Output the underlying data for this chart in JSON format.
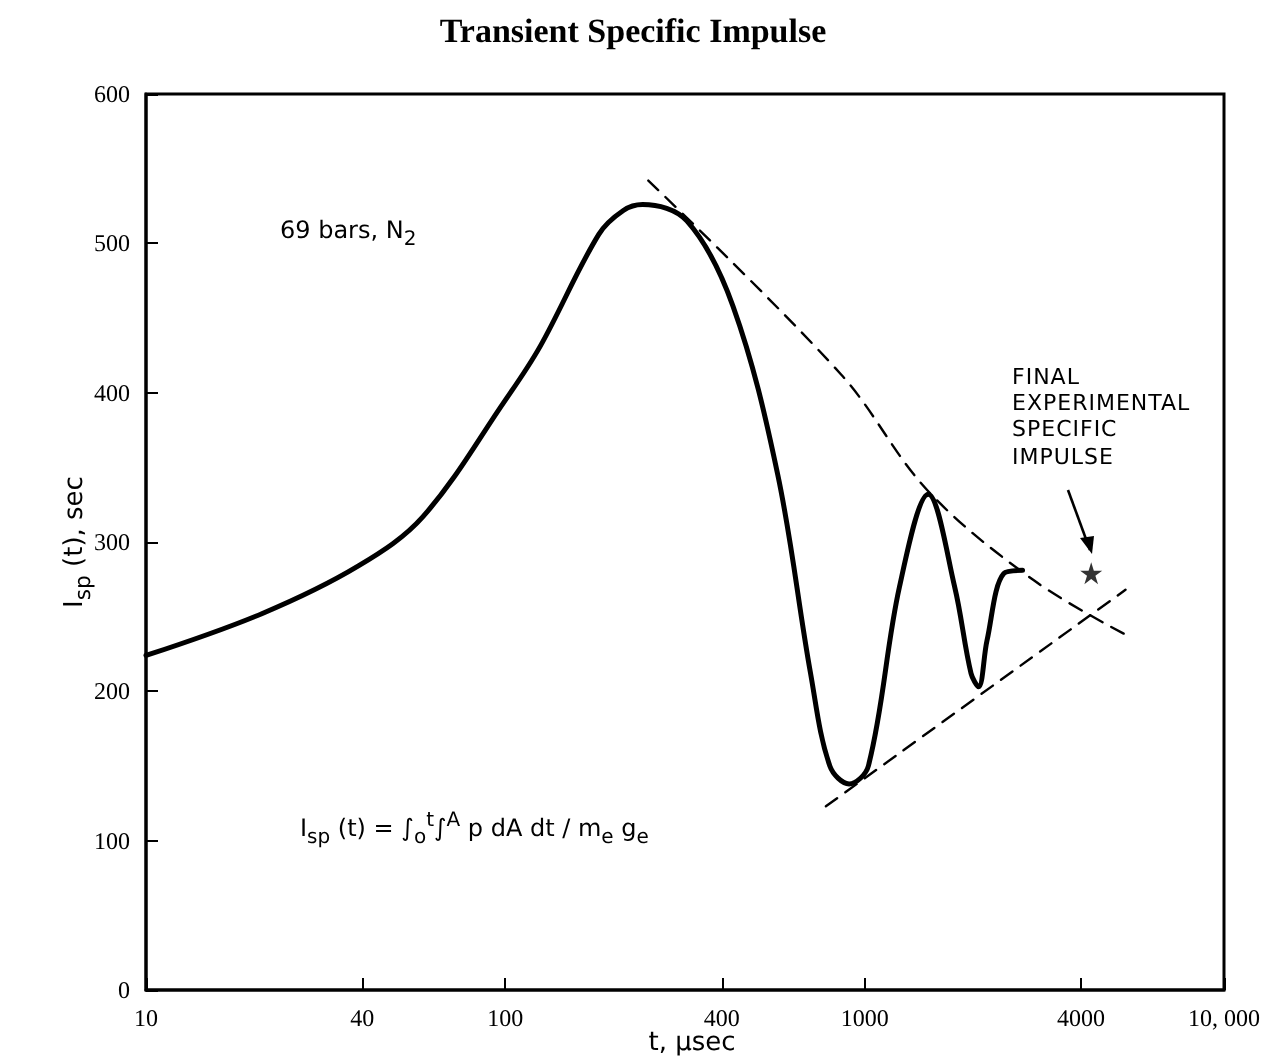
{
  "chart_data": {
    "type": "line",
    "title": "Transient Specific Impulse",
    "xlabel": "t, μsec",
    "ylabel": "I$_{sp}$ (t), sec",
    "log": "x",
    "xlim": [
      10,
      10000
    ],
    "xticks": [
      10,
      40,
      100,
      400,
      1000,
      4000,
      {
        "value": 10000,
        "label": "10, 000"
      }
    ],
    "ylim": [
      0,
      600
    ],
    "yticks": [
      0,
      100,
      200,
      300,
      400,
      500,
      600
    ],
    "grid": false,
    "annotations": [
      "69 bars, N$_{2}$",
      "I$_{sp}$ (t) = ∫$_{o}$$^{t}$∫$^{A}$ p dA dt / m$_{e}$ g$_{e}$",
      "FINAL EXPERIMENTAL SPECIFIC IMPULSE"
    ],
    "series": [
      {
        "color": "#000000",
        "line_style": "solid",
        "marker": "none",
        "x": [
          10,
          21,
          39,
          59,
          100,
          125,
          182,
          213,
          241,
          320,
          430,
          573,
          707,
          800,
          905,
          1024,
          1250,
          1503,
          1780,
          1977,
          2075,
          2190,
          2440,
          2750
        ],
        "values": [
          224,
          252,
          284,
          317,
          395,
          431,
          506,
          522,
          526,
          515,
          458,
          345,
          212,
          150,
          138,
          150,
          270,
          332,
          270,
          212,
          203,
          234,
          279,
          281
        ]
      },
      {
        "color": "#000000",
        "line_style": "dashed",
        "marker": "none",
        "x": [
          250,
          861,
          1503,
          2970,
          5320
        ],
        "values": [
          542,
          412,
          334,
          274,
          238
        ]
      },
      {
        "color": "#000000",
        "line_style": "dashed",
        "marker": "none",
        "x": [
          780,
          5320
        ],
        "values": [
          123,
          268
        ]
      },
      {
        "type": "scatter",
        "color": "#000000",
        "marker": "star",
        "x": [
          4270
        ],
        "values": [
          279
        ]
      }
    ]
  }
}
